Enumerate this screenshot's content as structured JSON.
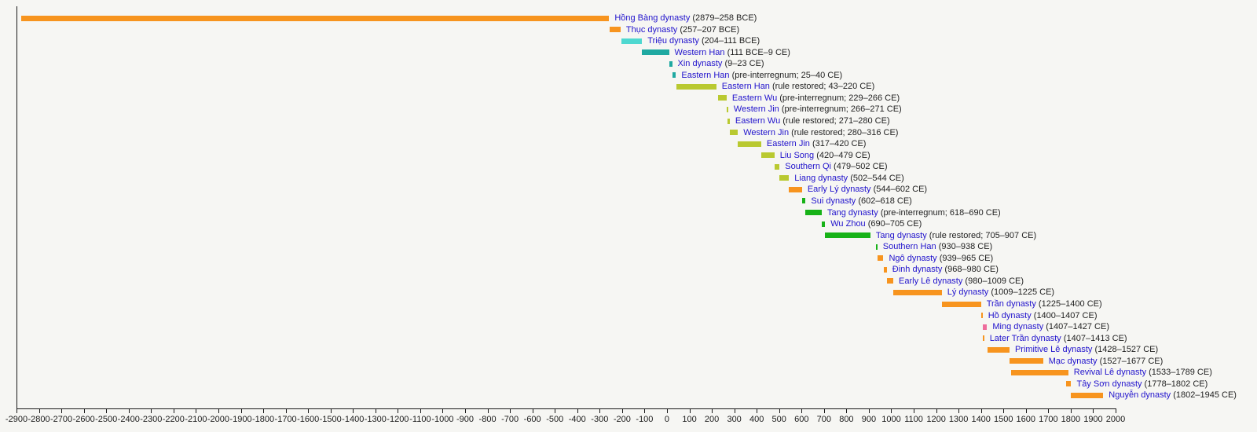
{
  "chart_data": {
    "type": "bar",
    "variant": "horizontal-timeline",
    "title": "",
    "grid": false,
    "legend": false,
    "x_axis": {
      "min": -2900,
      "max": 2000,
      "tick_interval": 100,
      "ticks": [
        -2900,
        -2800,
        -2700,
        -2600,
        -2500,
        -2400,
        -2300,
        -2200,
        -2100,
        -2000,
        -1900,
        -1800,
        -1700,
        -1600,
        -1500,
        -1400,
        -1300,
        -1200,
        -1100,
        -1000,
        -900,
        -800,
        -700,
        -600,
        -500,
        -400,
        -300,
        -200,
        -100,
        0,
        100,
        200,
        300,
        400,
        500,
        600,
        700,
        800,
        900,
        1000,
        1100,
        1200,
        1300,
        1400,
        1500,
        1600,
        1700,
        1800,
        1900,
        2000
      ]
    },
    "palette": {
      "orange": "#f7941e",
      "turquoise": "#4ed8d0",
      "teal": "#1fa9a1",
      "olive": "#b9c930",
      "green": "#17b217",
      "pink": "#ee6c9c"
    },
    "link_color": "#2012cc",
    "date_color": "#1f1f1f",
    "rows": [
      {
        "name": "Hồng Bàng dynasty",
        "note": "(2879–258 BCE)",
        "start": -2879,
        "end": -258,
        "color": "orange"
      },
      {
        "name": "Thục dynasty",
        "note": "(257–207 BCE)",
        "start": -257,
        "end": -207,
        "color": "orange"
      },
      {
        "name": "Triệu dynasty",
        "note": "(204–111 BCE)",
        "start": -204,
        "end": -111,
        "color": "turquoise"
      },
      {
        "name": "Western Han",
        "note": "(111 BCE–9 CE)",
        "start": -111,
        "end": 9,
        "color": "teal"
      },
      {
        "name": "Xin dynasty",
        "note": "(9–23 CE)",
        "start": 9,
        "end": 23,
        "color": "teal"
      },
      {
        "name": "Eastern Han",
        "note": "(pre-interregnum; 25–40 CE)",
        "start": 25,
        "end": 40,
        "color": "teal"
      },
      {
        "name": "Eastern Han",
        "note": "(rule restored; 43–220 CE)",
        "start": 43,
        "end": 220,
        "color": "olive"
      },
      {
        "name": "Eastern Wu",
        "note": "(pre-interregnum; 229–266 CE)",
        "start": 229,
        "end": 266,
        "color": "olive"
      },
      {
        "name": "Western Jin",
        "note": "(pre-interregnum; 266–271 CE)",
        "start": 266,
        "end": 271,
        "color": "olive"
      },
      {
        "name": "Eastern Wu",
        "note": "(rule restored; 271–280 CE)",
        "start": 271,
        "end": 280,
        "color": "olive"
      },
      {
        "name": "Western Jin",
        "note": "(rule restored; 280–316 CE)",
        "start": 280,
        "end": 316,
        "color": "olive"
      },
      {
        "name": "Eastern Jin",
        "note": "(317–420 CE)",
        "start": 317,
        "end": 420,
        "color": "olive"
      },
      {
        "name": "Liu Song",
        "note": "(420–479 CE)",
        "start": 420,
        "end": 479,
        "color": "olive"
      },
      {
        "name": "Southern Qi",
        "note": "(479–502 CE)",
        "start": 479,
        "end": 502,
        "color": "olive"
      },
      {
        "name": "Liang dynasty",
        "note": "(502–544 CE)",
        "start": 502,
        "end": 544,
        "color": "olive"
      },
      {
        "name": "Early Lý dynasty",
        "note": "(544–602 CE)",
        "start": 544,
        "end": 602,
        "color": "orange"
      },
      {
        "name": "Sui dynasty",
        "note": "(602–618 CE)",
        "start": 602,
        "end": 618,
        "color": "green"
      },
      {
        "name": "Tang dynasty",
        "note": "(pre-interregnum; 618–690 CE)",
        "start": 618,
        "end": 690,
        "color": "green"
      },
      {
        "name": "Wu Zhou",
        "note": "(690–705 CE)",
        "start": 690,
        "end": 705,
        "color": "green"
      },
      {
        "name": "Tang dynasty",
        "note": "(rule restored; 705–907 CE)",
        "start": 705,
        "end": 907,
        "color": "green"
      },
      {
        "name": "Southern Han",
        "note": "(930–938 CE)",
        "start": 930,
        "end": 938,
        "color": "green"
      },
      {
        "name": "Ngô dynasty",
        "note": "(939–965 CE)",
        "start": 939,
        "end": 965,
        "color": "orange"
      },
      {
        "name": "Đinh dynasty",
        "note": "(968–980 CE)",
        "start": 968,
        "end": 980,
        "color": "orange"
      },
      {
        "name": "Early Lê dynasty",
        "note": "(980–1009 CE)",
        "start": 980,
        "end": 1009,
        "color": "orange"
      },
      {
        "name": "Lý dynasty",
        "note": "(1009–1225 CE)",
        "start": 1009,
        "end": 1225,
        "color": "orange"
      },
      {
        "name": "Trần dynasty",
        "note": "(1225–1400 CE)",
        "start": 1225,
        "end": 1400,
        "color": "orange"
      },
      {
        "name": "Hồ dynasty",
        "note": "(1400–1407 CE)",
        "start": 1400,
        "end": 1407,
        "color": "orange"
      },
      {
        "name": "Ming dynasty",
        "note": "(1407–1427 CE)",
        "start": 1407,
        "end": 1427,
        "color": "pink"
      },
      {
        "name": "Later Trần dynasty",
        "note": "(1407–1413 CE)",
        "start": 1407,
        "end": 1413,
        "color": "orange"
      },
      {
        "name": "Primitive Lê dynasty",
        "note": "(1428–1527 CE)",
        "start": 1428,
        "end": 1527,
        "color": "orange"
      },
      {
        "name": "Mạc dynasty",
        "note": "(1527–1677 CE)",
        "start": 1527,
        "end": 1677,
        "color": "orange"
      },
      {
        "name": "Revival Lê dynasty",
        "note": "(1533–1789 CE)",
        "start": 1533,
        "end": 1789,
        "color": "orange"
      },
      {
        "name": "Tây Sơn dynasty",
        "note": "(1778–1802 CE)",
        "start": 1778,
        "end": 1802,
        "color": "orange"
      },
      {
        "name": "Nguyễn dynasty",
        "note": "(1802–1945 CE)",
        "start": 1802,
        "end": 1945,
        "color": "orange"
      }
    ]
  }
}
